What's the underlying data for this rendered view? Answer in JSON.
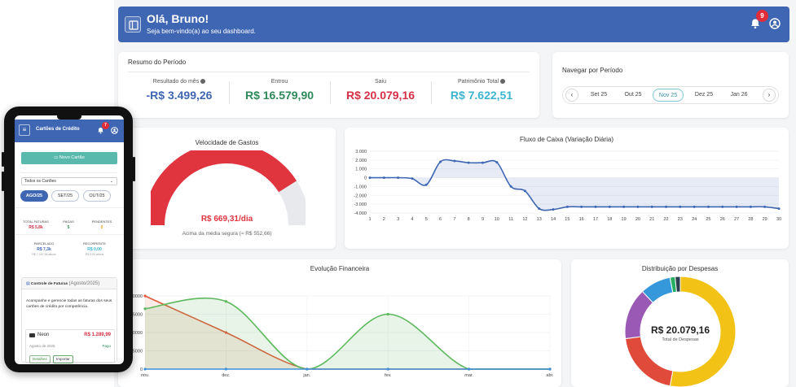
{
  "header": {
    "greeting": "Olá, Bruno!",
    "subtitle": "Seja bem-vindo(a) ao seu dashboard.",
    "notifications": "9"
  },
  "resumo": {
    "title": "Resumo do Período",
    "items": [
      {
        "label": "Resultado do mês",
        "value": "-R$ 3.499,26",
        "color": "#3f66b3"
      },
      {
        "label": "Entrou",
        "value": "R$ 16.579,90",
        "color": "#2e8a5a"
      },
      {
        "label": "Saiu",
        "value": "R$ 20.079,16",
        "color": "#d63046"
      },
      {
        "label": "Patrimônio Total",
        "value": "R$ 7.622,51",
        "color": "#3bb4d0"
      }
    ]
  },
  "navegar": {
    "title": "Navegar por Período",
    "prev": "‹",
    "next": "›",
    "months": [
      "Set 25",
      "Out 25",
      "Nov 25",
      "Dez 25",
      "Jan 26"
    ],
    "active": "Nov 25"
  },
  "velocidade": {
    "title": "Velocidade de Gastos",
    "value": "R$ 669,31/dia",
    "caption": "Acima da média segura (≈ R$ 552,66)",
    "gauge_fraction": 0.82
  },
  "fluxo": {
    "title": "Fluxo de Caixa (Variação Diária)",
    "chart_data": {
      "type": "line",
      "x": [
        1,
        2,
        3,
        4,
        5,
        6,
        7,
        8,
        9,
        10,
        11,
        12,
        13,
        14,
        15,
        16,
        17,
        18,
        19,
        20,
        21,
        22,
        23,
        24,
        25,
        26,
        27,
        28,
        29,
        30
      ],
      "y": [
        0,
        0,
        0,
        -100,
        -800,
        1800,
        1900,
        1700,
        1700,
        1750,
        -1000,
        -1500,
        -3500,
        -3600,
        -3300,
        -3300,
        -3300,
        -3300,
        -3300,
        -3300,
        -3300,
        -3300,
        -3300,
        -3300,
        -3300,
        -3300,
        -3300,
        -3300,
        -3300,
        -3500
      ],
      "ylim": [
        -4000,
        3000
      ],
      "yticks": [
        "3.000",
        "2.000",
        "1.000",
        "0",
        "-1.000",
        "-2.000",
        "-3.000",
        "-4.000"
      ],
      "color": "#3f66b3"
    }
  },
  "evolucao": {
    "title": "Evolução Financeira",
    "chart_data": {
      "type": "line",
      "categories": [
        "nov.",
        "dez.",
        "jan.",
        "fev.",
        "mar.",
        "abr."
      ],
      "series": [
        {
          "values": [
            20000,
            10000,
            0,
            0,
            0,
            0
          ],
          "color": "#e05a3a"
        },
        {
          "values": [
            16500,
            18500,
            0,
            15000,
            0,
            0
          ],
          "color": "#5cb85c"
        },
        {
          "values": [
            0,
            0,
            0,
            0,
            0,
            0
          ],
          "color": "#3f8fd6"
        }
      ],
      "ylim": [
        0,
        20000
      ],
      "yticks": [
        "20000",
        "15000",
        "10000",
        "5000",
        "0"
      ]
    }
  },
  "distribuicao": {
    "title": "Distribuição por Despesas",
    "center_value": "R$ 20.079,16",
    "center_label": "Total de Despesas",
    "chart_data": {
      "type": "pie",
      "values": [
        53,
        20,
        15,
        9,
        1.5,
        1.5
      ],
      "colors": [
        "#f2c216",
        "#e04a3a",
        "#9b59b6",
        "#3498db",
        "#27ae60",
        "#2c3e50"
      ]
    }
  },
  "phone": {
    "title": "Cartões de Crédito",
    "badge": "7",
    "novo": "▭ Novo Cartão",
    "select": "Todos os Cartões",
    "tabs": [
      "AGO/25",
      "SET/25",
      "OUT/25"
    ],
    "stats": [
      {
        "label": "TOTAL FATURAS",
        "value": "R$ 5,8k",
        "color": "#d63046"
      },
      {
        "label": "PAGAS",
        "value": "5",
        "color": "#2e8a5a"
      },
      {
        "label": "PENDENTES",
        "value": "0",
        "color": "#e0a020"
      }
    ],
    "stats2": [
      {
        "label": "PARCELADO",
        "value": "R$ 7,3k",
        "sub": "R$ 7.267,38 ativos",
        "color": "#3f66b3"
      },
      {
        "label": "RECORRENTE",
        "value": "R$ 0,00",
        "sub": "R$ 0,00 ativos",
        "color": "#3bb4d0"
      }
    ],
    "ctl_title": "Controle de Faturas",
    "ctl_period": "(Agosto/2025)",
    "ctl_text": "Acompanhe e gerencie todas as faturas dos seus cartões de crédito por competência.",
    "card_name": "Neon",
    "card_value": "R$ 1.289,99",
    "card_date": "Agosto de 2025",
    "card_status": "Pago",
    "btn_detalhes": "Detalhes",
    "btn_importar": "Importar"
  }
}
